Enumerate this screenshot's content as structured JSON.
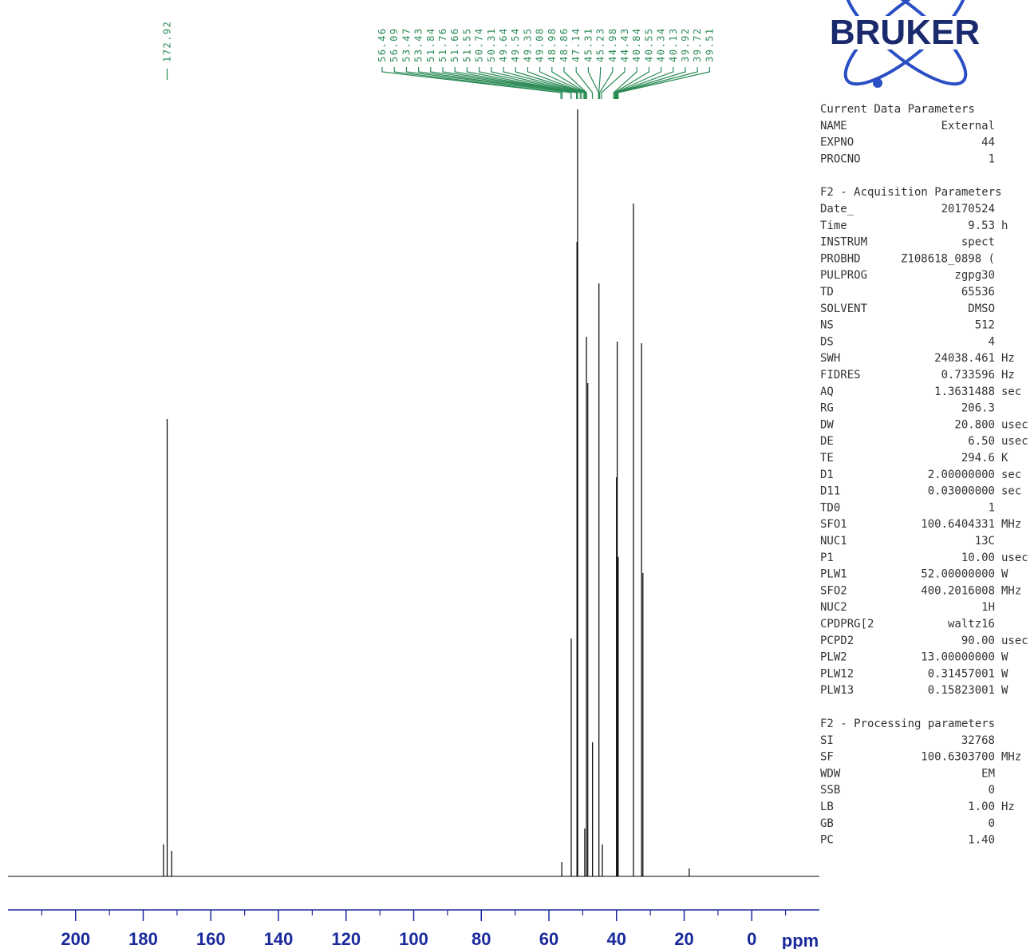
{
  "chart_data": {
    "type": "spectrum",
    "x": [
      174.0,
      172.92,
      171.6,
      56.2,
      53.4,
      51.7,
      51.5,
      49.4,
      48.9,
      48.5,
      47.1,
      45.2,
      44.2,
      40.0,
      39.8,
      39.5,
      35.0,
      32.6,
      32.2,
      18.5
    ],
    "values": [
      40,
      573,
      32,
      18,
      298,
      795,
      961,
      60,
      676,
      618,
      168,
      743,
      40,
      500,
      670,
      400,
      843,
      668,
      380,
      10
    ],
    "color": "#000000",
    "xlim": [
      220,
      -20
    ],
    "ylim": [
      0,
      1000
    ],
    "xticks": [
      200,
      180,
      160,
      140,
      120,
      100,
      80,
      60,
      40,
      20,
      0
    ],
    "xminor_ticks": [
      210,
      190,
      170,
      150,
      130,
      110,
      90,
      70,
      50,
      30,
      10,
      -10
    ],
    "xlabel": "ppm",
    "peak_labels": [
      172.92,
      56.46,
      56.09,
      53.47,
      53.43,
      51.84,
      51.76,
      51.66,
      51.55,
      50.74,
      50.31,
      49.64,
      49.54,
      49.35,
      49.08,
      48.98,
      48.86,
      47.14,
      45.31,
      45.23,
      44.98,
      44.43,
      40.84,
      40.55,
      40.34,
      40.13,
      39.92,
      39.72,
      39.51
    ],
    "label_color": "#2a8a55",
    "axis_color": "#1a2a9c"
  },
  "logo": {
    "text": "BRUKER"
  },
  "parameters": [
    {
      "title": "Current Data Parameters",
      "rows": [
        [
          "NAME",
          "External",
          ""
        ],
        [
          "EXPNO",
          "44",
          ""
        ],
        [
          "PROCNO",
          "1",
          ""
        ]
      ]
    },
    {
      "title": "F2 - Acquisition Parameters",
      "rows": [
        [
          "Date_",
          "20170524",
          ""
        ],
        [
          "Time",
          "9.53",
          "h"
        ],
        [
          "INSTRUM",
          "spect",
          ""
        ],
        [
          "PROBHD",
          "Z108618_0898 (",
          ""
        ],
        [
          "PULPROG",
          "zgpg30",
          ""
        ],
        [
          "TD",
          "65536",
          ""
        ],
        [
          "SOLVENT",
          "DMSO",
          ""
        ],
        [
          "NS",
          "512",
          ""
        ],
        [
          "DS",
          "4",
          ""
        ],
        [
          "SWH",
          "24038.461",
          "Hz"
        ],
        [
          "FIDRES",
          "0.733596",
          "Hz"
        ],
        [
          "AQ",
          "1.3631488",
          "sec"
        ],
        [
          "RG",
          "206.3",
          ""
        ],
        [
          "DW",
          "20.800",
          "usec"
        ],
        [
          "DE",
          "6.50",
          "usec"
        ],
        [
          "TE",
          "294.6",
          "K"
        ],
        [
          "D1",
          "2.00000000",
          "sec"
        ],
        [
          "D11",
          "0.03000000",
          "sec"
        ],
        [
          "TD0",
          "1",
          ""
        ],
        [
          "SFO1",
          "100.6404331",
          "MHz"
        ],
        [
          "NUC1",
          "13C",
          ""
        ],
        [
          "P1",
          "10.00",
          "usec"
        ],
        [
          "PLW1",
          "52.00000000",
          "W"
        ],
        [
          "SFO2",
          "400.2016008",
          "MHz"
        ],
        [
          "NUC2",
          "1H",
          ""
        ],
        [
          "CPDPRG[2",
          "waltz16",
          ""
        ],
        [
          "PCPD2",
          "90.00",
          "usec"
        ],
        [
          "PLW2",
          "13.00000000",
          "W"
        ],
        [
          "PLW12",
          "0.31457001",
          "W"
        ],
        [
          "PLW13",
          "0.15823001",
          "W"
        ]
      ]
    },
    {
      "title": "F2 - Processing parameters",
      "rows": [
        [
          "SI",
          "32768",
          ""
        ],
        [
          "SF",
          "100.6303700",
          "MHz"
        ],
        [
          "WDW",
          "EM",
          ""
        ],
        [
          "SSB",
          "0",
          ""
        ],
        [
          "LB",
          "1.00",
          "Hz"
        ],
        [
          "GB",
          "0",
          ""
        ],
        [
          "PC",
          "1.40",
          ""
        ]
      ]
    }
  ]
}
